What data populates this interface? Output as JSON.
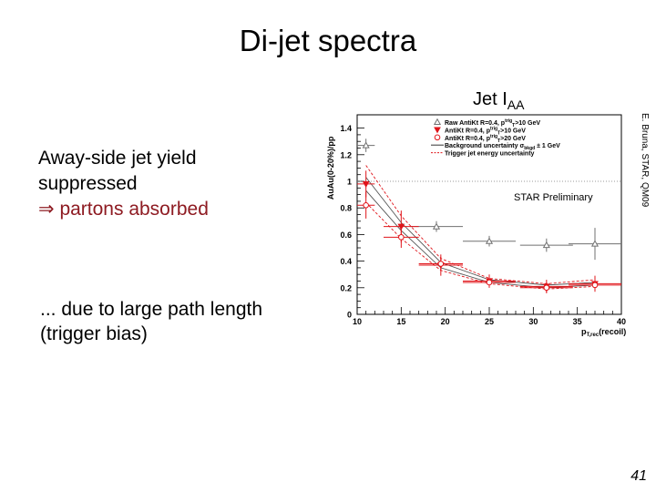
{
  "slide": {
    "title": "Di-jet spectra",
    "caption_main": "Jet I",
    "caption_sub": "AA",
    "bullet1_line1": "Away-side jet yield",
    "bullet1_line2": "suppressed",
    "bullet1_arrow": "⇒",
    "bullet1_line3": " partons absorbed",
    "bullet2_line1": "... due to large path length",
    "bullet2_line2": "(trigger bias)",
    "credit": "E. Bruna, STAR, QM09",
    "page_number": "41",
    "colors": {
      "red_text": "#8e1b22",
      "series_red": "#e0141a",
      "series_gray": "#707070"
    }
  },
  "chart_data": {
    "type": "scatter",
    "ylabel": "AuAu(0-20%)/pp",
    "xlabel": "p",
    "xlabel_sub": "T,rec",
    "xlabel_suffix": "(recoil)",
    "xlim": [
      10,
      40
    ],
    "ylim": [
      0,
      1.5
    ],
    "xticks": [
      "10",
      "15",
      "20",
      "25",
      "30",
      "35",
      "40"
    ],
    "yticks": [
      "0",
      "0.2",
      "0.4",
      "0.6",
      "0.8",
      "1",
      "1.2",
      "1.4"
    ],
    "annotation": "STAR Preliminary",
    "reference_line": 1,
    "legend": [
      {
        "label": "Raw AntiKt R=0.4, p",
        "sup": "trig",
        "sub": "T",
        "tail": ">10 GeV",
        "marker": "open-triangle",
        "color": "#707070"
      },
      {
        "label": "AntiKt R=0.4, p",
        "sup": "trig",
        "sub": "T",
        "tail": ">10 GeV",
        "marker": "filled-triangle-down",
        "color": "#e0141a"
      },
      {
        "label": "AntiKt R=0.4, p",
        "sup": "trig",
        "sub": "T",
        "tail": ">20 GeV",
        "marker": "open-circle",
        "color": "#e0141a"
      },
      {
        "label": "Background uncertainty σ",
        "sup": "",
        "sub": "bkgd",
        "tail": " ± 1 GeV",
        "marker": "line-solid",
        "color": "#333333"
      },
      {
        "label": "Trigger jet energy uncertainty",
        "sup": "",
        "sub": "",
        "tail": "",
        "marker": "line-dashed",
        "color": "#e0141a"
      }
    ],
    "series": [
      {
        "marker": "open-triangle",
        "color": "#707070",
        "x": [
          11,
          19,
          25,
          31.5,
          37
        ],
        "y": [
          1.27,
          0.66,
          0.55,
          0.52,
          0.53
        ],
        "xerr": [
          1,
          3,
          3,
          3,
          3
        ],
        "yerr": [
          0.05,
          0.04,
          0.04,
          0.05,
          0.12
        ]
      },
      {
        "marker": "filled-triangle-down",
        "color": "#e0141a",
        "x": [
          11,
          15,
          19.5,
          25,
          31.5,
          37
        ],
        "y": [
          0.98,
          0.66,
          0.37,
          0.25,
          0.21,
          0.23
        ],
        "xerr": [
          1,
          2,
          2.5,
          3,
          3,
          3
        ],
        "yerr": [
          0.1,
          0.12,
          0.08,
          0.05,
          0.05,
          0.06
        ]
      },
      {
        "marker": "open-circle",
        "color": "#e0141a",
        "x": [
          11,
          15,
          19.5,
          25,
          31.5,
          37
        ],
        "y": [
          0.82,
          0.58,
          0.38,
          0.24,
          0.2,
          0.22
        ],
        "xerr": [
          1,
          2,
          2.5,
          3,
          3,
          3
        ],
        "yerr": [
          0.1,
          0.08,
          0.05,
          0.04,
          0.04,
          0.05
        ]
      }
    ],
    "bands": [
      {
        "style": "dashed",
        "color": "#e0141a",
        "x": [
          11,
          15,
          19.5,
          25,
          31.5,
          37
        ],
        "y": [
          1.12,
          0.74,
          0.42,
          0.27,
          0.23,
          0.26
        ]
      },
      {
        "style": "dashed",
        "color": "#e0141a",
        "x": [
          11,
          15,
          19.5,
          25,
          31.5,
          37
        ],
        "y": [
          0.84,
          0.57,
          0.33,
          0.23,
          0.19,
          0.21
        ]
      },
      {
        "style": "solid",
        "color": "#555555",
        "x": [
          11,
          15,
          19.5,
          25,
          31.5,
          37
        ],
        "y": [
          1.03,
          0.69,
          0.39,
          0.26,
          0.22,
          0.24
        ]
      },
      {
        "style": "solid",
        "color": "#555555",
        "x": [
          11,
          15,
          19.5,
          25,
          31.5,
          37
        ],
        "y": [
          0.93,
          0.63,
          0.35,
          0.24,
          0.2,
          0.22
        ]
      }
    ]
  }
}
